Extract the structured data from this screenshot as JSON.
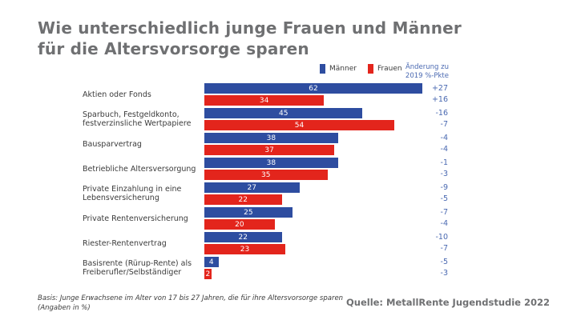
{
  "title": {
    "line1": "Wie unterschiedlich junge Frauen und Männer",
    "line2": "für die Altersvorsorge sparen"
  },
  "legend": {
    "men_label": "Männer",
    "women_label": "Frauen"
  },
  "change_header": {
    "line1": "Änderung zu",
    "line2": "2019 %-Pkte"
  },
  "colors": {
    "men_blue": "#2E4DA0",
    "women_red": "#E3251C",
    "title_gray": "#6F7072",
    "change_blue": "#4A69B1",
    "label_dark": "#3B3B3B"
  },
  "footer": {
    "basis_line1": "Basis: Junge Erwachsene im Alter von 17 bis 27 Jahren, die für ihre Altersvorsorge sparen",
    "basis_line2": "(Angaben in %)",
    "source": "Quelle: MetallRente Jugendstudie 2022"
  },
  "chart_data": {
    "type": "bar",
    "orientation": "horizontal",
    "unit": "%",
    "title": "Wie unterschiedlich junge Frauen und Männer für die Altersvorsorge sparen",
    "xlim": [
      0,
      62
    ],
    "value_labels": "inside-center-white",
    "legend_position": "top-right",
    "categories": [
      "Aktien oder Fonds",
      "Sparbuch, Festgeldkonto,\nfestverzinsliche Wertpapiere",
      "Bausparvertrag",
      "Betriebliche Altersversorgung",
      "Private Einzahlung in eine\nLebensversicherung",
      "Private Rentenversicherung",
      "Riester-Rentenvertrag",
      "Basisrente (Rürup-Rente) als\nFreiberufler/Selbständiger"
    ],
    "series": [
      {
        "name": "Männer",
        "color": "#2E4DA0",
        "values": [
          62,
          45,
          38,
          38,
          27,
          25,
          22,
          4
        ],
        "changes_vs_2019": [
          "+27",
          "-16",
          "-4",
          "-1",
          "-9",
          "-7",
          "-10",
          "-5"
        ]
      },
      {
        "name": "Frauen",
        "color": "#E3251C",
        "values": [
          34,
          54,
          37,
          35,
          22,
          20,
          23,
          2
        ],
        "changes_vs_2019": [
          "+16",
          "-7",
          "-4",
          "-3",
          "-5",
          "-4",
          "-7",
          "-3"
        ]
      }
    ]
  }
}
